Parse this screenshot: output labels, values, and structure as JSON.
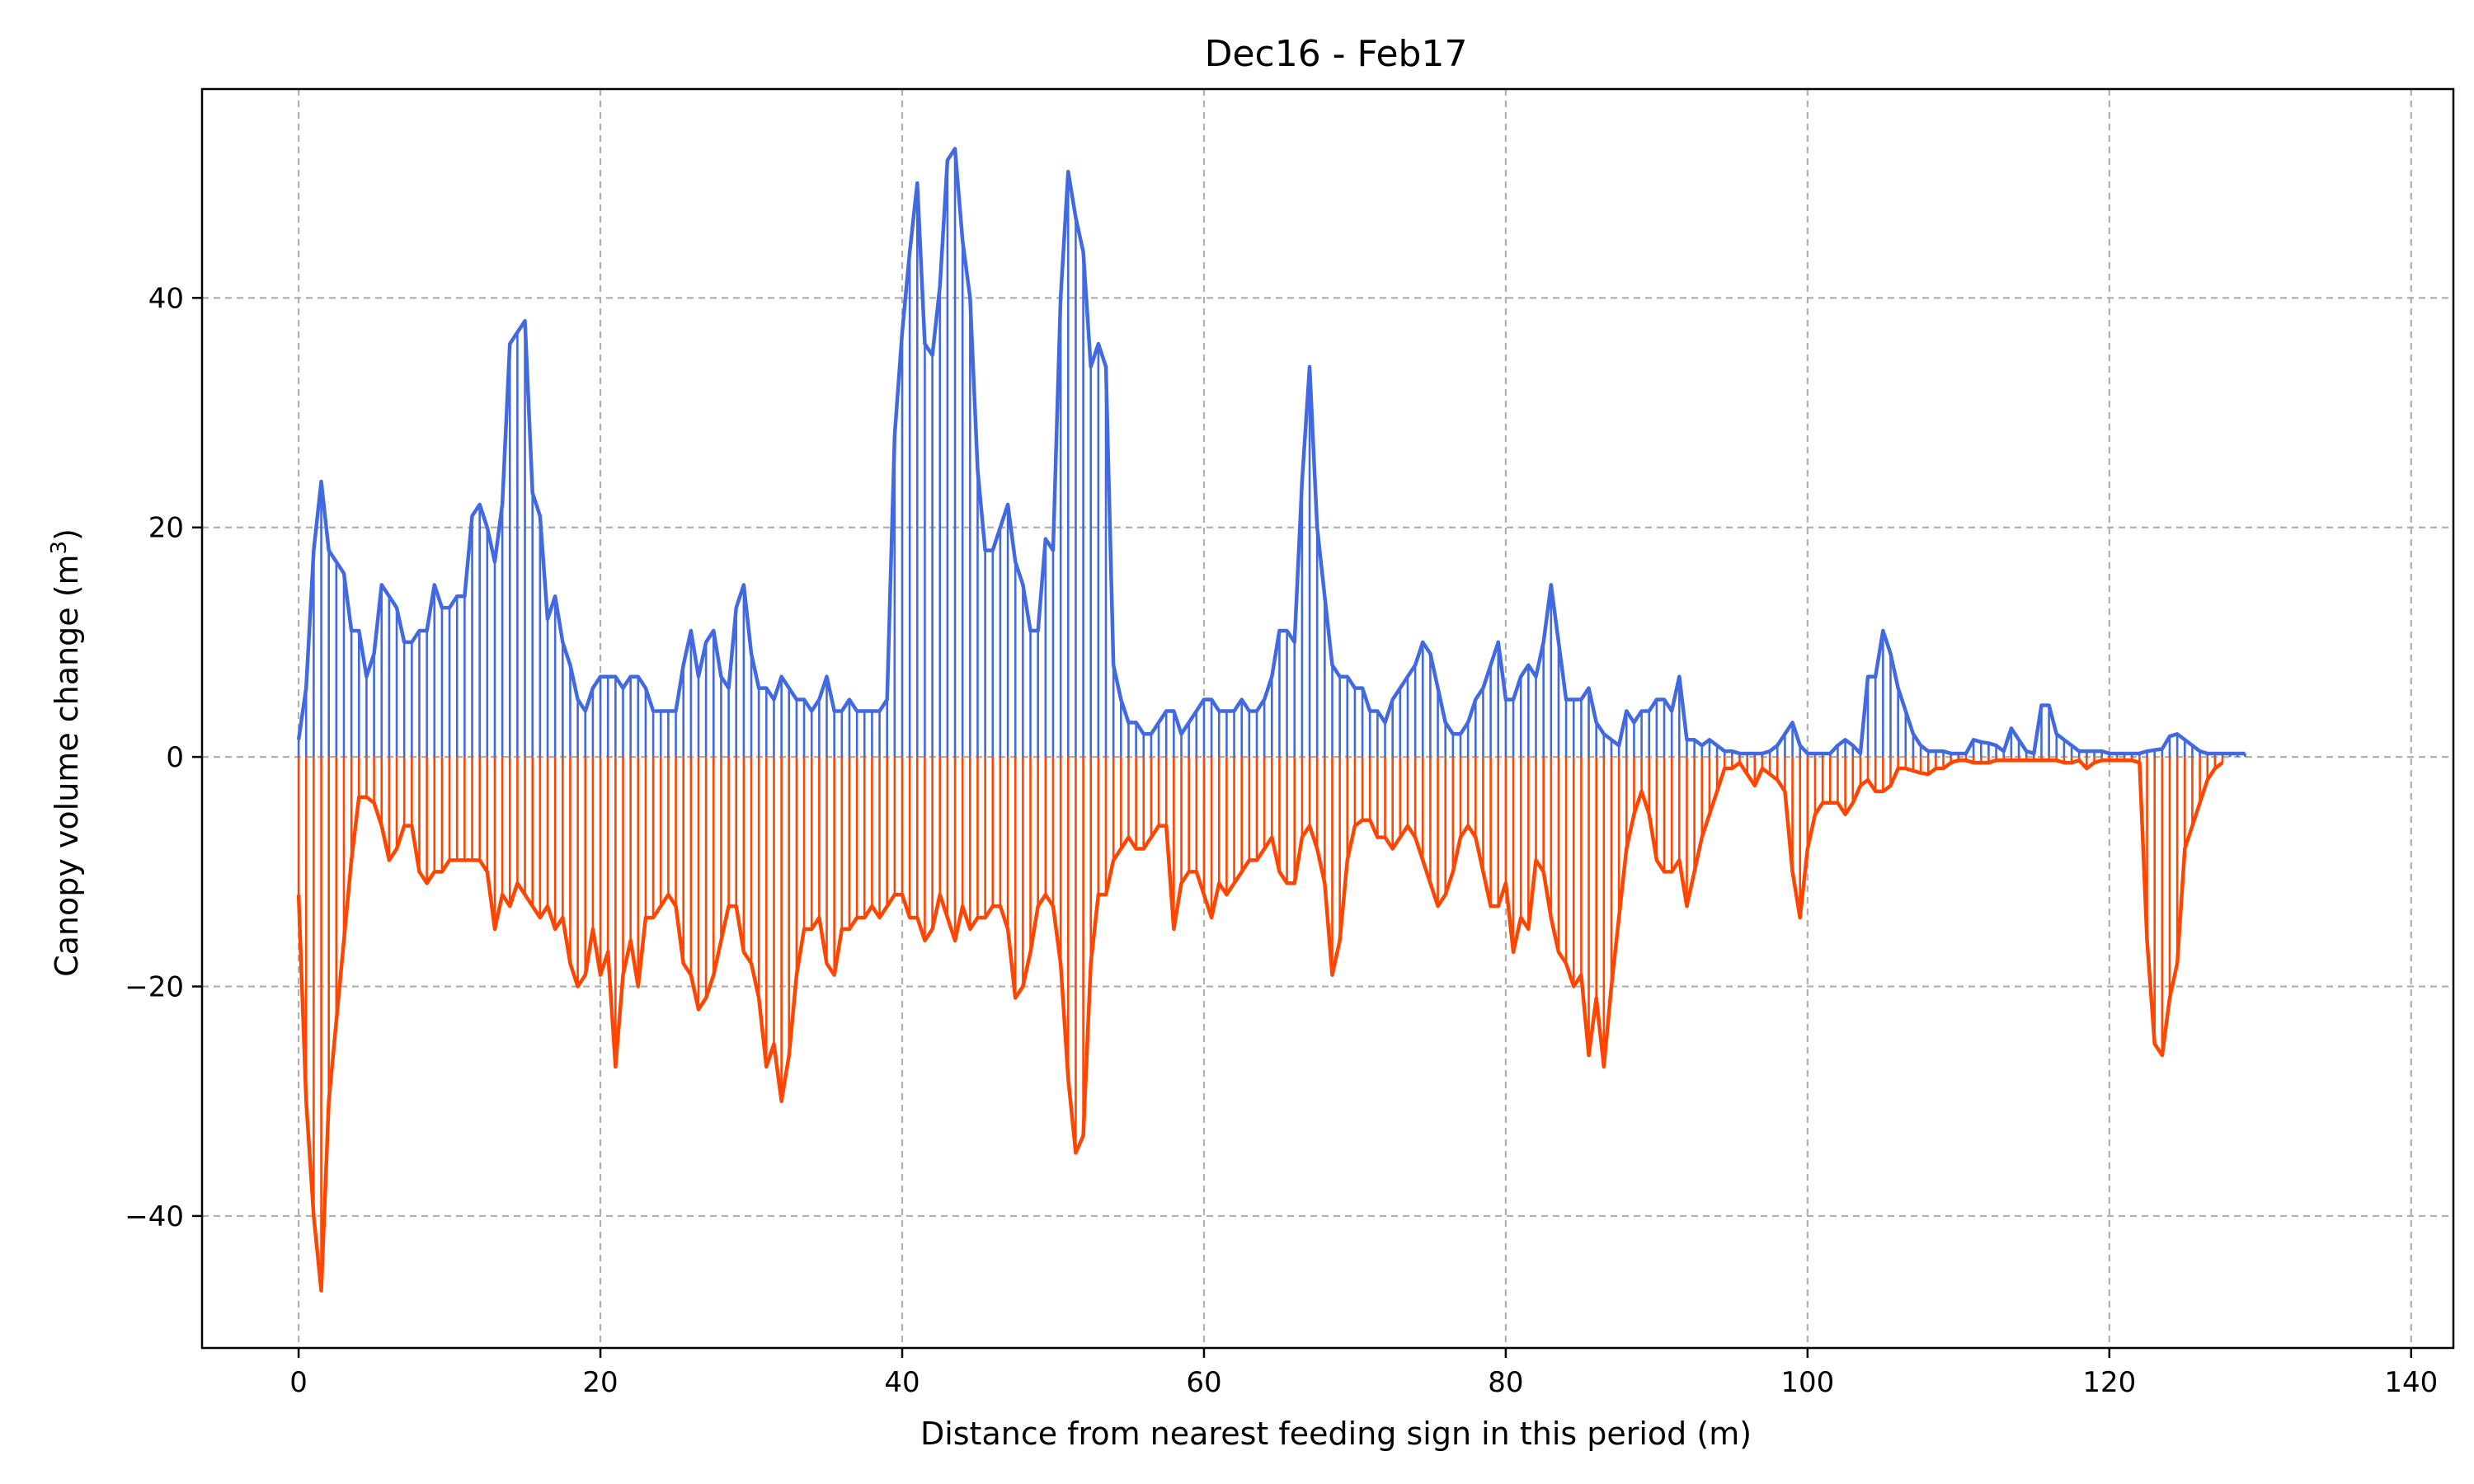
{
  "chart_data": {
    "type": "line",
    "title": "Dec16 - Feb17",
    "xlabel": "Distance from nearest feeding sign in this period (m)",
    "ylabel_main": "Canopy volume change (m",
    "ylabel_sup": "3",
    "ylabel_close": ")",
    "xlim": [
      -6.4,
      142.8
    ],
    "ylim": [
      -51.5,
      58.2
    ],
    "xticks": [
      0,
      20,
      40,
      60,
      80,
      100,
      120,
      140
    ],
    "yticks": [
      -40,
      -20,
      0,
      20,
      40
    ],
    "xtick_labels": [
      "0",
      "20",
      "40",
      "60",
      "80",
      "100",
      "120",
      "140"
    ],
    "ytick_labels": [
      "−40",
      "−20",
      "0",
      "20",
      "40"
    ],
    "grid": true,
    "colors": {
      "gain": "#4169e1",
      "loss": "#ff4500",
      "grid": "#b0b0b0"
    },
    "x_step": 0.5,
    "series": [
      {
        "key": "gain",
        "values": [
          1.5,
          6,
          18,
          24,
          18,
          17,
          16,
          11,
          11,
          7,
          9,
          15,
          14,
          13,
          10,
          10,
          11,
          11,
          15,
          13,
          13,
          14,
          14,
          21,
          22,
          20,
          17,
          22,
          36,
          37,
          38,
          23,
          21,
          12,
          14,
          10,
          8,
          5,
          4,
          6,
          7,
          7,
          7,
          6,
          7,
          7,
          6,
          4,
          4,
          4,
          4,
          8,
          11,
          7,
          10,
          11,
          7,
          6,
          13,
          15,
          9,
          6,
          6,
          5,
          7,
          6,
          5,
          5,
          4,
          5,
          7,
          4,
          4,
          5,
          4,
          4,
          4,
          4,
          5,
          28,
          37,
          44,
          50,
          36,
          35,
          41,
          52,
          53,
          45,
          40,
          25,
          18,
          18,
          20,
          22,
          17,
          15,
          11,
          11,
          19,
          18,
          40,
          51,
          47,
          44,
          34,
          36,
          34,
          8,
          5,
          3,
          3,
          2,
          2,
          3,
          4,
          4,
          2,
          3,
          4,
          5,
          5,
          4,
          4,
          4,
          5,
          4,
          4,
          5,
          7,
          11,
          11,
          10,
          24,
          34,
          20,
          14,
          8,
          7,
          7,
          6,
          6,
          4,
          4,
          3,
          5,
          6,
          7,
          8,
          10,
          9,
          6,
          3,
          2,
          2,
          3,
          5,
          6,
          8,
          10,
          5,
          5,
          7,
          8,
          7,
          10,
          15,
          10,
          5,
          5,
          5,
          6,
          3,
          2,
          1.5,
          1,
          4,
          3,
          4,
          4,
          5,
          5,
          4,
          7,
          1.5,
          1.5,
          1,
          1.5,
          1,
          0.5,
          0.5,
          0.3,
          0.3,
          0.3,
          0.3,
          0.5,
          1,
          2,
          3,
          1,
          0.3,
          0.3,
          0.3,
          0.3,
          1,
          1.5,
          1,
          0.3,
          7,
          7,
          11,
          9,
          6,
          4,
          2,
          1,
          0.5,
          0.5,
          0.5,
          0.3,
          0.3,
          0.3,
          1.5,
          1.3,
          1.2,
          1,
          0.5,
          2.5,
          1.5,
          0.5,
          0.3,
          4.5,
          4.5,
          2,
          1.5,
          1,
          0.5,
          0.5,
          0.5,
          0.5,
          0.3,
          0.3,
          0.3,
          0.3,
          0.3,
          0.5,
          0.6,
          0.7,
          1.8,
          2,
          1.5,
          1,
          0.5,
          0.3,
          0.3,
          0.3,
          0.3,
          0.3,
          0.3
        ]
      },
      {
        "key": "loss",
        "values": [
          -12,
          -30,
          -40,
          -46.5,
          -30,
          -23,
          -16,
          -9,
          -3.5,
          -3.5,
          -4,
          -6,
          -9,
          -8,
          -6,
          -6,
          -10,
          -11,
          -10,
          -10,
          -9,
          -9,
          -9,
          -9,
          -9,
          -10,
          -15,
          -12,
          -13,
          -11,
          -12,
          -13,
          -14,
          -13,
          -15,
          -14,
          -18,
          -20,
          -19,
          -15,
          -19,
          -17,
          -27,
          -19,
          -16,
          -20,
          -14,
          -14,
          -13,
          -12,
          -13,
          -18,
          -19,
          -22,
          -21,
          -19,
          -16,
          -13,
          -13,
          -17,
          -18,
          -21,
          -27,
          -25,
          -30,
          -26,
          -19,
          -15,
          -15,
          -14,
          -18,
          -19,
          -15,
          -15,
          -14,
          -14,
          -13,
          -14,
          -13,
          -12,
          -12,
          -14,
          -14,
          -16,
          -15,
          -12,
          -14,
          -16,
          -13,
          -15,
          -14,
          -14,
          -13,
          -13,
          -15,
          -21,
          -20,
          -17,
          -13,
          -12,
          -13,
          -18,
          -28,
          -34.5,
          -33,
          -18,
          -12,
          -12,
          -9,
          -8,
          -7,
          -8,
          -8,
          -7,
          -6,
          -6,
          -15,
          -11,
          -10,
          -10,
          -12,
          -14,
          -11,
          -12,
          -11,
          -10,
          -9,
          -9,
          -8,
          -7,
          -10,
          -11,
          -11,
          -7,
          -6,
          -8,
          -11,
          -19,
          -16,
          -9,
          -6,
          -5.5,
          -5.5,
          -7,
          -7,
          -8,
          -7,
          -6,
          -7,
          -9,
          -11,
          -13,
          -12,
          -10,
          -7,
          -6,
          -7,
          -10,
          -13,
          -13,
          -11,
          -17,
          -14,
          -15,
          -9,
          -10,
          -14,
          -17,
          -18,
          -20,
          -19,
          -26,
          -21,
          -27,
          -20,
          -14,
          -8,
          -5,
          -3,
          -5,
          -9,
          -10,
          -10,
          -9,
          -13,
          -10,
          -7,
          -5,
          -3,
          -1,
          -1,
          -0.5,
          -1.5,
          -2.5,
          -1,
          -1.5,
          -2,
          -3,
          -10,
          -14,
          -8,
          -5,
          -4,
          -4,
          -4,
          -5,
          -4,
          -2.5,
          -2,
          -3,
          -3,
          -2.5,
          -1,
          -1,
          -1.2,
          -1.4,
          -1.5,
          -1,
          -1,
          -0.5,
          -0.3,
          -0.3,
          -0.5,
          -0.5,
          -0.5,
          -0.3,
          -0.3,
          -0.3,
          -0.3,
          -0.3,
          -0.3,
          -0.3,
          -0.3,
          -0.3,
          -0.5,
          -0.5,
          -0.3,
          -1,
          -0.5,
          -0.3,
          -0.3,
          -0.3,
          -0.3,
          -0.3,
          -0.5,
          -16,
          -25,
          -26,
          -21,
          -18,
          -8,
          -6,
          -4,
          -2,
          -1,
          -0.5
        ]
      }
    ]
  }
}
